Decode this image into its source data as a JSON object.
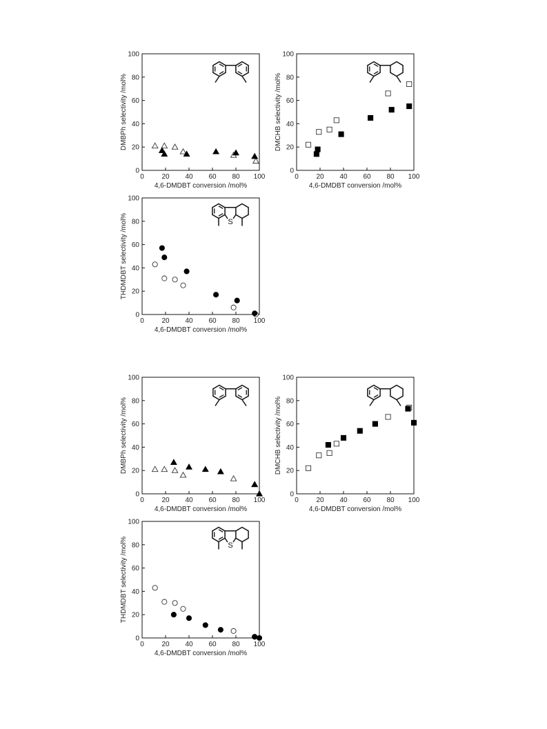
{
  "chart_data": [
    {
      "type": "scatter",
      "xlabel": "4,6-DMDBT conversion /mol%",
      "ylabel": "DMBPh selectivity /mol%",
      "xlim": [
        0,
        100
      ],
      "ylim": [
        0,
        100
      ],
      "xticks": [
        "0",
        "20",
        "40",
        "60",
        "80",
        "100"
      ],
      "yticks": [
        "0",
        "20",
        "40",
        "60",
        "80",
        "100"
      ],
      "structure": "DMBPh",
      "structure_label": "",
      "series": [
        {
          "marker": "triangle-open",
          "points": [
            [
              11,
              21
            ],
            [
              19,
              21
            ],
            [
              28,
              20
            ],
            [
              35,
              16
            ],
            [
              78,
              13
            ],
            [
              97,
              8
            ]
          ]
        },
        {
          "marker": "triangle-filled",
          "points": [
            [
              17,
              17
            ],
            [
              19,
              14
            ],
            [
              38,
              14
            ],
            [
              63,
              16
            ],
            [
              80,
              15
            ],
            [
              96,
              12
            ]
          ]
        }
      ]
    },
    {
      "type": "scatter",
      "xlabel": "4,6-DMDBT conversion /mol%",
      "ylabel": "DMCHB selectivity /mol%",
      "xlim": [
        0,
        100
      ],
      "ylim": [
        0,
        100
      ],
      "xticks": [
        "0",
        "20",
        "40",
        "60",
        "80",
        "100"
      ],
      "yticks": [
        "0",
        "20",
        "40",
        "60",
        "80",
        "100"
      ],
      "structure": "DMCHB",
      "structure_label": "",
      "series": [
        {
          "marker": "square-open",
          "points": [
            [
              10,
              22
            ],
            [
              19,
              33
            ],
            [
              28,
              35
            ],
            [
              34,
              43
            ],
            [
              78,
              66
            ],
            [
              96,
              74
            ]
          ]
        },
        {
          "marker": "square-filled",
          "points": [
            [
              17,
              14
            ],
            [
              18,
              18
            ],
            [
              38,
              31
            ],
            [
              63,
              45
            ],
            [
              81,
              52
            ],
            [
              96,
              55
            ]
          ]
        }
      ]
    },
    {
      "type": "scatter",
      "xlabel": "4,6-DMDBT conversion /mol%",
      "ylabel": "THDMDBT selectivity /mol%",
      "xlim": [
        0,
        100
      ],
      "ylim": [
        0,
        100
      ],
      "xticks": [
        "0",
        "20",
        "40",
        "60",
        "80",
        "100"
      ],
      "yticks": [
        "0",
        "20",
        "40",
        "60",
        "80",
        "100"
      ],
      "structure": "THDMDBT",
      "structure_label": "S",
      "series": [
        {
          "marker": "circle-open",
          "points": [
            [
              11,
              43
            ],
            [
              19,
              31
            ],
            [
              28,
              30
            ],
            [
              35,
              25
            ],
            [
              78,
              6
            ],
            [
              97,
              0
            ]
          ]
        },
        {
          "marker": "circle-filled",
          "points": [
            [
              17,
              57
            ],
            [
              19,
              49
            ],
            [
              38,
              37
            ],
            [
              63,
              17
            ],
            [
              81,
              12
            ],
            [
              96,
              1
            ]
          ]
        }
      ]
    },
    {
      "type": "scatter",
      "xlabel": "4,6-DMDBT conversion /mol%",
      "ylabel": "DMBPh selectivity /mol%",
      "xlim": [
        0,
        100
      ],
      "ylim": [
        0,
        100
      ],
      "xticks": [
        "0",
        "20",
        "40",
        "60",
        "80",
        "100"
      ],
      "yticks": [
        "0",
        "20",
        "40",
        "60",
        "80",
        "100"
      ],
      "structure": "DMBPh",
      "structure_label": "",
      "series": [
        {
          "marker": "triangle-open",
          "points": [
            [
              11,
              21
            ],
            [
              19,
              21
            ],
            [
              28,
              20
            ],
            [
              35,
              16
            ],
            [
              78,
              13
            ],
            [
              96,
              8
            ]
          ]
        },
        {
          "marker": "triangle-filled",
          "points": [
            [
              27,
              27
            ],
            [
              40,
              23
            ],
            [
              54,
              21
            ],
            [
              67,
              19
            ],
            [
              96,
              8
            ],
            [
              100,
              0
            ]
          ]
        }
      ]
    },
    {
      "type": "scatter",
      "xlabel": "4,6-DMDBT conversion /mol%",
      "ylabel": "DMCHB selectivity /mol%",
      "xlim": [
        0,
        100
      ],
      "ylim": [
        0,
        100
      ],
      "xticks": [
        "0",
        "20",
        "40",
        "60",
        "80",
        "100"
      ],
      "yticks": [
        "0",
        "20",
        "40",
        "60",
        "80",
        "100"
      ],
      "structure": "DMCHB",
      "structure_label": "",
      "series": [
        {
          "marker": "square-open",
          "points": [
            [
              10,
              22
            ],
            [
              19,
              33
            ],
            [
              28,
              35
            ],
            [
              34,
              43
            ],
            [
              78,
              66
            ],
            [
              96,
              74
            ]
          ]
        },
        {
          "marker": "square-filled",
          "points": [
            [
              27,
              42
            ],
            [
              40,
              48
            ],
            [
              54,
              54
            ],
            [
              67,
              60
            ],
            [
              95,
              73
            ],
            [
              100,
              61
            ]
          ]
        }
      ]
    },
    {
      "type": "scatter",
      "xlabel": "4,6-DMDBT conversion /mol%",
      "ylabel": "THDMDBT selectivity /mol%",
      "xlim": [
        0,
        100
      ],
      "ylim": [
        0,
        100
      ],
      "xticks": [
        "0",
        "20",
        "40",
        "60",
        "80",
        "100"
      ],
      "yticks": [
        "0",
        "20",
        "40",
        "60",
        "80",
        "100"
      ],
      "structure": "THDMDBT",
      "structure_label": "S",
      "series": [
        {
          "marker": "circle-open",
          "points": [
            [
              11,
              43
            ],
            [
              19,
              31
            ],
            [
              28,
              30
            ],
            [
              35,
              25
            ],
            [
              78,
              6
            ],
            [
              96,
              1
            ]
          ]
        },
        {
          "marker": "circle-filled",
          "points": [
            [
              27,
              20
            ],
            [
              40,
              17
            ],
            [
              54,
              11
            ],
            [
              67,
              7
            ],
            [
              96,
              1
            ],
            [
              100,
              0
            ]
          ]
        }
      ]
    }
  ]
}
